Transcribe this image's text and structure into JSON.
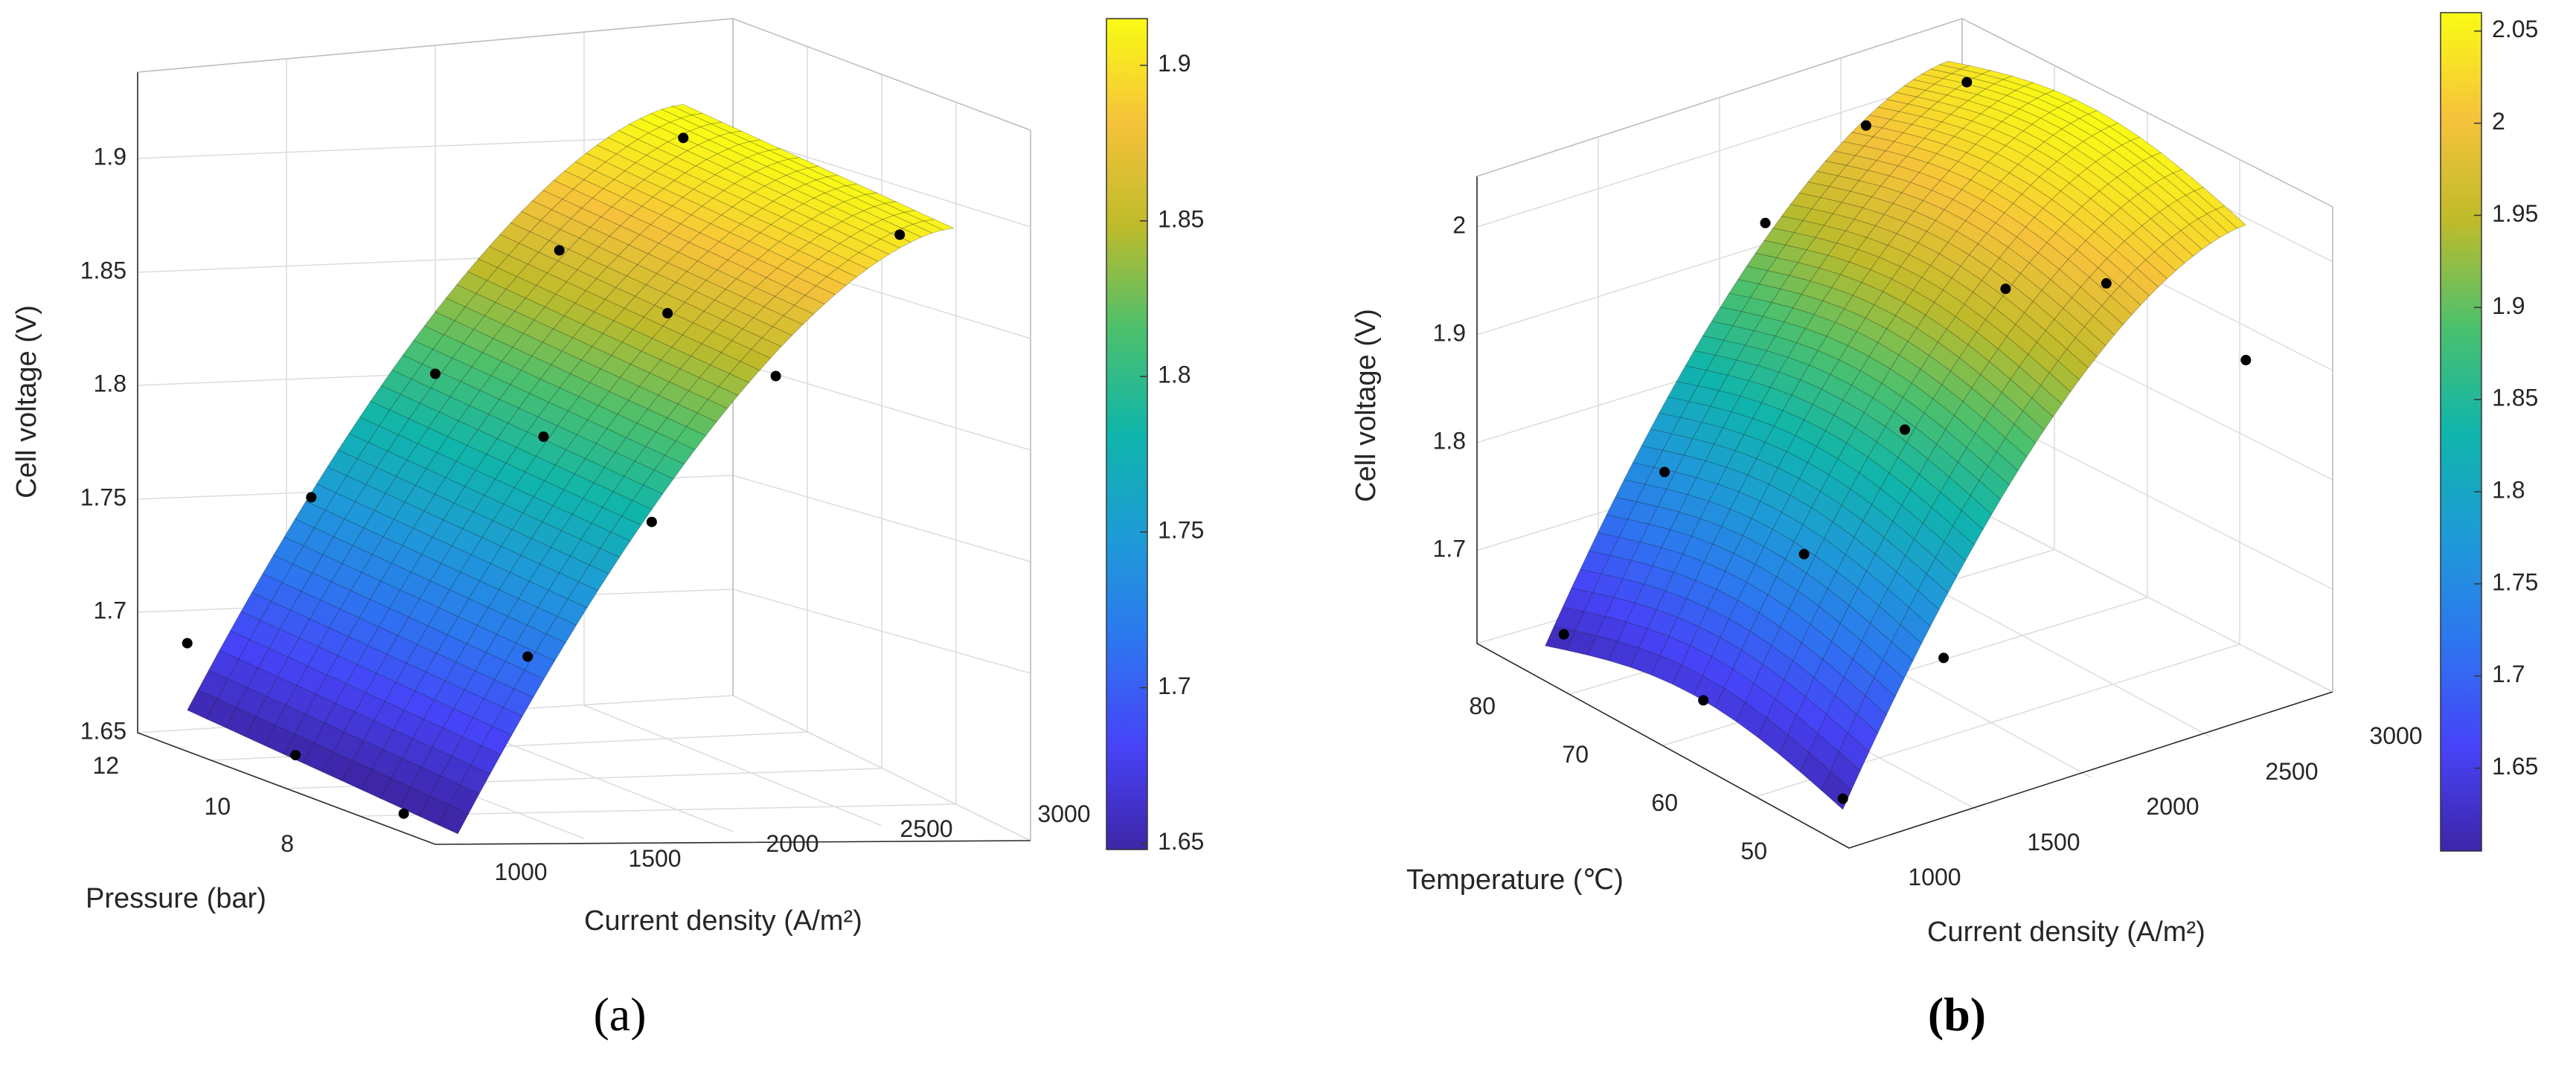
{
  "chart_data": [
    {
      "type": "surface",
      "caption": "(a)",
      "xlabel": "Current density (A/m²)",
      "ylabel": "Pressure (bar)",
      "zlabel": "Cell voltage (V)",
      "xticks": [
        1000,
        1500,
        2000,
        2500,
        3000
      ],
      "yticks": [
        8,
        10,
        12
      ],
      "zticks": [
        1.65,
        1.7,
        1.75,
        1.8,
        1.85,
        1.9
      ],
      "xlim": [
        800,
        3200
      ],
      "ylim": [
        6.5,
        12
      ],
      "zlim": [
        1.64,
        1.94
      ],
      "colorbar": {
        "ticks": [
          1.65,
          1.7,
          1.75,
          1.8,
          1.85,
          1.9
        ],
        "range": [
          1.648,
          1.915
        ]
      },
      "grid": true,
      "points": [
        {
          "x": 1000,
          "y": 12,
          "z": 1.68
        },
        {
          "x": 1000,
          "y": 10,
          "z": 1.648
        },
        {
          "x": 1000,
          "y": 8,
          "z": 1.64
        },
        {
          "x": 1500,
          "y": 12,
          "z": 1.745
        },
        {
          "x": 1500,
          "y": 8,
          "z": 1.71
        },
        {
          "x": 2000,
          "y": 12,
          "z": 1.8
        },
        {
          "x": 2000,
          "y": 10,
          "z": 1.79
        },
        {
          "x": 2000,
          "y": 8,
          "z": 1.77
        },
        {
          "x": 2500,
          "y": 12,
          "z": 1.855
        },
        {
          "x": 2500,
          "y": 10,
          "z": 1.845
        },
        {
          "x": 2500,
          "y": 8,
          "z": 1.835
        },
        {
          "x": 3000,
          "y": 12,
          "z": 1.905
        },
        {
          "x": 3000,
          "y": 8,
          "z": 1.898
        }
      ]
    },
    {
      "type": "surface",
      "caption": "(b)",
      "xlabel": "Current density (A/m²)",
      "ylabel": "Temperature (℃)",
      "zlabel": "Cell voltage (V)",
      "xticks": [
        1000,
        1500,
        2000,
        2500,
        3000
      ],
      "yticks": [
        50,
        60,
        70,
        80
      ],
      "zticks": [
        1.7,
        1.8,
        1.9,
        2
      ],
      "xlim": [
        800,
        3200
      ],
      "ylim": [
        45,
        85
      ],
      "zlim": [
        1.61,
        2.05
      ],
      "colorbar": {
        "ticks": [
          1.65,
          1.7,
          1.75,
          1.8,
          1.85,
          1.9,
          1.95,
          2,
          2.05
        ],
        "range": [
          1.605,
          2.06
        ]
      },
      "grid": true,
      "points": [
        {
          "x": 1000,
          "y": 80,
          "z": 1.63
        },
        {
          "x": 1000,
          "y": 65,
          "z": 1.64
        },
        {
          "x": 1000,
          "y": 50,
          "z": 1.62
        },
        {
          "x": 1500,
          "y": 80,
          "z": 1.75
        },
        {
          "x": 1500,
          "y": 65,
          "z": 1.745
        },
        {
          "x": 1500,
          "y": 50,
          "z": 1.72
        },
        {
          "x": 2000,
          "y": 80,
          "z": 1.95
        },
        {
          "x": 2000,
          "y": 65,
          "z": 1.83
        },
        {
          "x": 2500,
          "y": 80,
          "z": 2.01
        },
        {
          "x": 2500,
          "y": 65,
          "z": 1.93
        },
        {
          "x": 3000,
          "y": 80,
          "z": 2.02
        },
        {
          "x": 3000,
          "y": 65,
          "z": 1.905
        },
        {
          "x": 3000,
          "y": 50,
          "z": 1.905
        }
      ]
    }
  ]
}
